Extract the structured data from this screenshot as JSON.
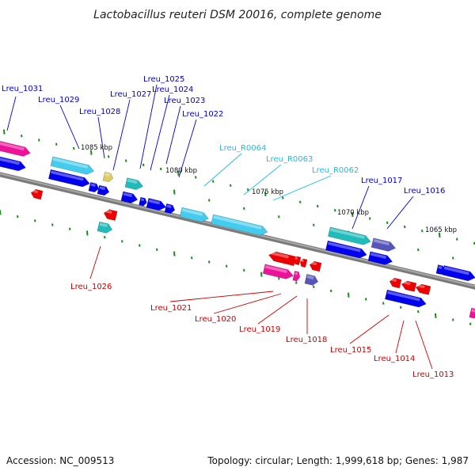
{
  "title": "Lactobacillus reuteri DSM 20016, complete genome",
  "footer": {
    "accession": "Accession: NC_009513",
    "summary": "Topology: circular; Length: 1,999,618 bp; Genes: 1,987"
  },
  "scale_labels": [
    "1085 kbp",
    "1080 kbp",
    "1075 kbp",
    "1070 kbp",
    "1065 kbp"
  ],
  "gene_labels_top": [
    "Lreu_1031",
    "Lreu_1029",
    "Lreu_1028",
    "Lreu_1027",
    "Lreu_1025",
    "Lreu_1024",
    "Lreu_1023",
    "Lreu_1022",
    "Lreu_1017",
    "Lreu_1016"
  ],
  "rna_labels": [
    "Lreu_R0064",
    "Lreu_R0063",
    "Lreu_R0062"
  ],
  "gene_labels_bottom": [
    "Lreu_1026",
    "Lreu_1021",
    "Lreu_1020",
    "Lreu_1019",
    "Lreu_1018",
    "Lreu_1015",
    "Lreu_1014",
    "Lreu_1013"
  ],
  "colors": {
    "forward_label": "#0000cc",
    "rna_label": "#22bbdd",
    "reverse_label": "#cc0000",
    "backbone": "#808080",
    "tick": "#1a8a1a",
    "blue_gene": "#0000ee",
    "red_gene": "#ee0000",
    "magenta_gene": "#ee1199",
    "teal_gene": "#20bbbb",
    "cyan_gene": "#44ccee",
    "purple_gene": "#5555bb",
    "yellow_gene": "#ddcc66"
  }
}
